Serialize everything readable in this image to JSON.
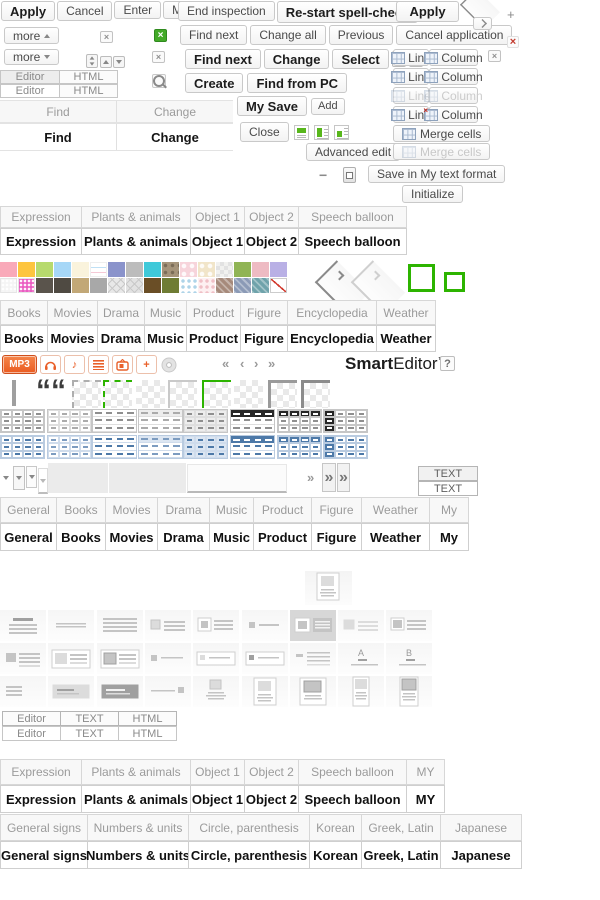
{
  "buttons": {
    "apply": "Apply",
    "cancel": "Cancel",
    "enter": "Enter",
    "modify": "Modify",
    "more": "more",
    "end_inspection": "End inspection",
    "restart_spell_check": "Re-start spell-check",
    "apply2": "Apply",
    "find_next": "Find next",
    "change_all": "Change all",
    "previous": "Previous",
    "cancel_application": "Cancel application",
    "find_next_bold": "Find next",
    "change": "Change",
    "select": "Select",
    "create": "Create",
    "find_from_pc": "Find from PC",
    "my_save": "My Save",
    "add": "Add",
    "close": "Close",
    "advanced_edit": "Advanced edit",
    "save_my_text": "Save in My text format",
    "initialize": "Initialize",
    "line": "Line",
    "column": "Column",
    "merge_cells": "Merge cells",
    "text_upper": "TEXT"
  },
  "editor_tabs": {
    "editor": "Editor",
    "html": "HTML",
    "text": "TEXT"
  },
  "find_change": {
    "find": "Find",
    "change": "Change"
  },
  "tab_groups": {
    "expression": [
      "Expression",
      "Plants & animals",
      "Object 1",
      "Object 2",
      "Speech balloon"
    ],
    "expression_my": [
      "Expression",
      "Plants & animals",
      "Object 1",
      "Object 2",
      "Speech balloon",
      "MY"
    ],
    "media": [
      "Books",
      "Movies",
      "Drama",
      "Music",
      "Product",
      "Figure",
      "Encyclopedia",
      "Weather"
    ],
    "general": [
      "General",
      "Books",
      "Movies",
      "Drama",
      "Music",
      "Product",
      "Figure",
      "Weather",
      "My"
    ],
    "signs": [
      "General signs",
      "Numbers & units",
      "Circle, parenthesis",
      "Korean",
      "Greek, Latin",
      "Japanese"
    ]
  },
  "logo": {
    "smart": "Smart",
    "editor": "Editor",
    "tm": "™",
    "help": "?"
  },
  "media_bar": {
    "mp3": "MP3"
  },
  "icons": {
    "close": "×",
    "plus": "+",
    "minus": "−",
    "note": "♪",
    "nav_first": "«",
    "nav_prev": "‹",
    "nav_next": "›",
    "nav_last": "»",
    "more_jump": "»"
  },
  "palette": {
    "row1": [
      {
        "c": "#f9a9b9"
      },
      {
        "c": "#fdc53f"
      },
      {
        "c": "#b7da6d"
      },
      {
        "c": "#a6d7f7"
      },
      {
        "c": "#faf3dc"
      },
      {
        "c": "#ffffff",
        "p": "lines"
      },
      {
        "c": "#8a93cb"
      },
      {
        "c": "#bcbcbc"
      },
      {
        "c": "#3fc9d9"
      },
      {
        "c": "#a5947a",
        "p": "dots-dark"
      },
      {
        "c": "#f7d4db",
        "p": "dots-light"
      },
      {
        "c": "#f1e5c9",
        "p": "dots-light"
      },
      {
        "c": "#f1f1ef",
        "p": "checker-sm"
      },
      {
        "c": "#90b455"
      },
      {
        "c": "#eebbc3"
      },
      {
        "c": "#b9b0e5"
      }
    ],
    "row2": [
      {
        "c": "#f4f4f4",
        "p": "dots-grid"
      },
      {
        "c": "#ea5cc2",
        "p": "dots-grid"
      },
      {
        "c": "#5a544c"
      },
      {
        "c": "#4f4a42"
      },
      {
        "c": "#c2a877"
      },
      {
        "c": "#a8a8a8"
      },
      {
        "c": "#e8e8e8",
        "p": "diag-star"
      },
      {
        "c": "#e2e2e2",
        "p": "diag-star"
      },
      {
        "c": "#6a4e26"
      },
      {
        "c": "#6f7c34"
      },
      {
        "c": "#ffffff",
        "p": "dots-blue"
      },
      {
        "c": "#fdf0f1",
        "p": "dots-pink"
      },
      {
        "c": "#a68a7b",
        "p": "diag"
      },
      {
        "c": "#8b9ab6",
        "p": "diag"
      },
      {
        "c": "#6fa3ab",
        "p": "diag"
      },
      {
        "c": "#ffffff",
        "p": "red-line"
      }
    ]
  },
  "table_styles": {
    "schemes": [
      "grey",
      "blue"
    ],
    "variants": [
      "bordered",
      "bordered-light",
      "lines",
      "striped",
      "tinted",
      "header-dark",
      "header-cells",
      "left-dark"
    ]
  },
  "layout_tiles": {
    "featured": "img-top-box",
    "letters": [
      "A",
      "B"
    ],
    "rows": [
      [
        "lines-center",
        "line-single",
        "lines-full",
        "img-left",
        "img-left-boxed",
        "sq-line",
        "img-big-sel",
        "img-left-2",
        "img-left-boxed-2"
      ],
      [
        "img-left-r2",
        "img-box-light",
        "img-box-dark",
        "tiny-sq-line",
        "tiny-sq-line-box",
        "tiny-sq-line-box2",
        "dash-lines",
        "A-lines",
        "B-lines"
      ],
      [
        "lines-short",
        "lines-box-grey",
        "lines-box-dark",
        "line-sq-right",
        "img-top",
        "img-top-box",
        "img-top-box2",
        "img-tall-box",
        "img-tall-box2"
      ]
    ]
  },
  "colors": {
    "green": "#2db400",
    "orange": "#e9602a",
    "blue_header": "#4d79a8",
    "red": "#c92b1d"
  }
}
